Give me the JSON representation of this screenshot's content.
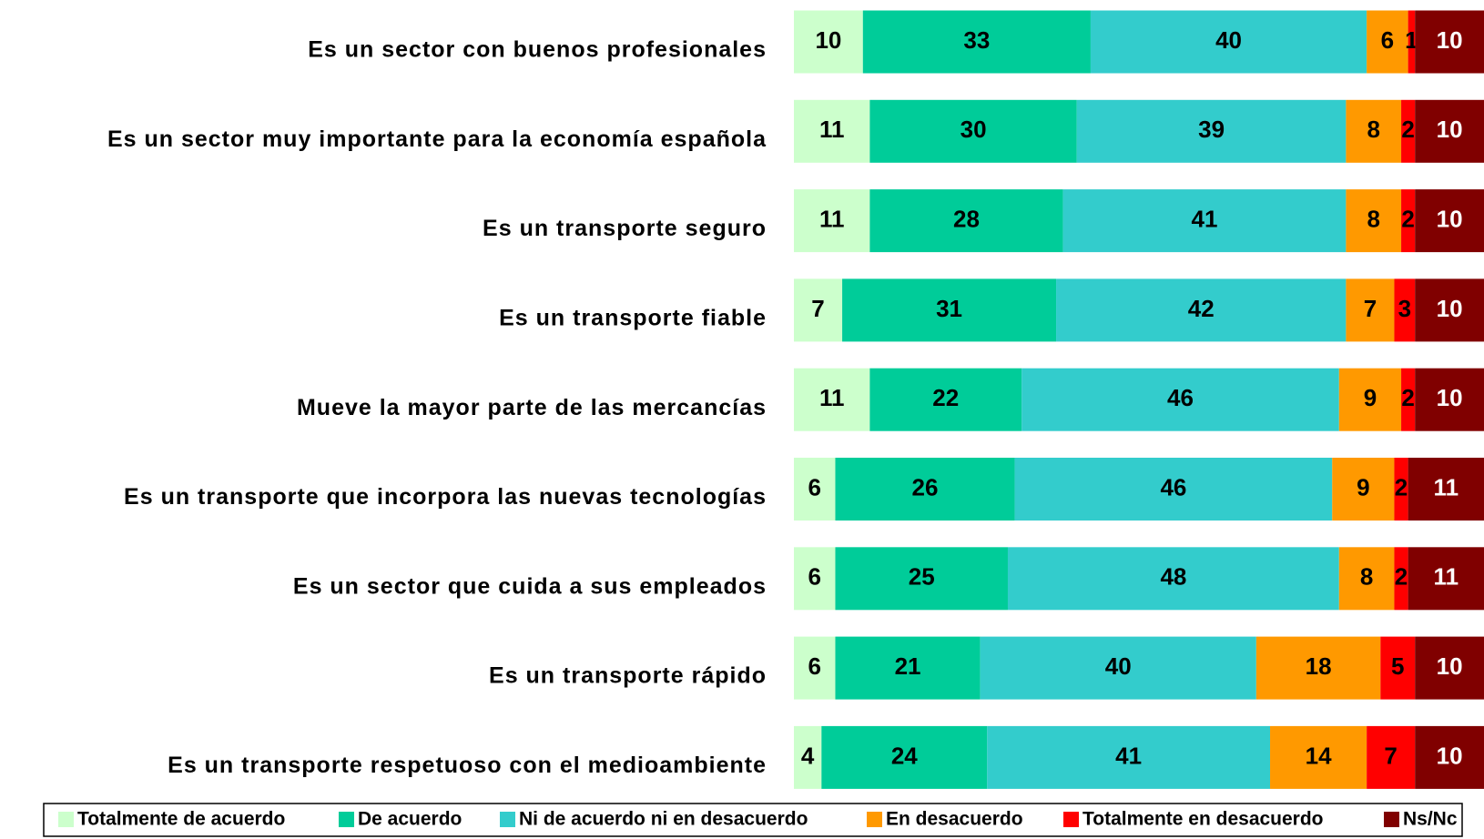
{
  "chart_data": {
    "type": "stacked-barh",
    "categories": [
      "Es un sector con buenos profesionales",
      "Es un sector muy importante para la economía española",
      "Es un transporte seguro",
      "Es un transporte fiable",
      "Mueve la mayor parte de las mercancías",
      "Es un transporte que incorpora las nuevas tecnologías",
      "Es un sector que cuida a sus empleados",
      "Es un transporte rápido",
      "Es un transporte respetuoso con el medioambiente"
    ],
    "series": [
      {
        "name": "Totalmente de acuerdo",
        "color": "#ccffcc",
        "values": [
          10,
          11,
          11,
          7,
          11,
          6,
          6,
          6,
          4
        ]
      },
      {
        "name": "De acuerdo",
        "color": "#00cc99",
        "values": [
          33,
          30,
          28,
          31,
          22,
          26,
          25,
          21,
          24
        ]
      },
      {
        "name": "Ni de acuerdo ni en desacuerdo",
        "color": "#33cccc",
        "values": [
          40,
          39,
          41,
          42,
          46,
          46,
          48,
          40,
          41
        ]
      },
      {
        "name": "En desacuerdo",
        "color": "#ff9900",
        "values": [
          6,
          8,
          8,
          7,
          9,
          9,
          8,
          18,
          14
        ]
      },
      {
        "name": "Totalmente en desacuerdo",
        "color": "#ff0000",
        "values": [
          1,
          2,
          2,
          3,
          2,
          2,
          2,
          5,
          7
        ]
      },
      {
        "name": "Ns/Nc",
        "color": "#800000",
        "values": [
          10,
          10,
          10,
          10,
          10,
          11,
          11,
          10,
          10
        ]
      }
    ],
    "xlim": [
      0,
      100
    ],
    "legend": "bottom"
  }
}
